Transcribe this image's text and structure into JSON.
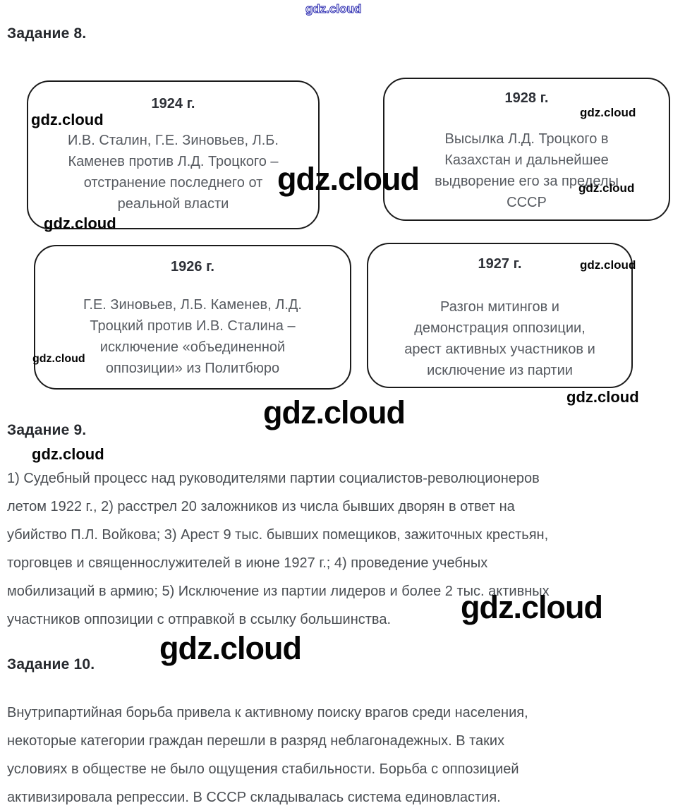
{
  "watermark": {
    "text": "gdz.cloud",
    "blue_color": "#2a2ab0",
    "black_color": "#050505"
  },
  "task8": {
    "heading": "Задание 8.",
    "boxes": [
      {
        "year": "1924 г.",
        "text": "И.В. Сталин, Г.Е. Зиновьев, Л.Б.\nКаменев против Л.Д. Троцкого –\nотстранение последнего от\nреальной власти"
      },
      {
        "year": "1928 г.",
        "text": "Высылка Л.Д. Троцкого в\nКазахстан и дальнейшее\nвыдворение его за пределы\nСССР"
      },
      {
        "year": "1926 г.",
        "text": "Г.Е. Зиновьев, Л.Б. Каменев, Л.Д.\nТроцкий против И.В. Сталина –\nисключение «объединенной\nоппозиции» из Политбюро"
      },
      {
        "year": "1927 г.",
        "text": "Разгон митингов и\nдемонстрация оппозиции,\nарест активных участников и\nисключение из партии"
      }
    ]
  },
  "task9": {
    "heading": "Задание 9.",
    "paragraph": "1) Судебный процесс над руководителями партии социалистов-революционеров\nлетом 1922 г., 2) расстрел 20 заложников из числа бывших дворян в ответ на\nубийство П.Л. Войкова; 3) Арест 9 тыс. бывших помещиков, зажиточных крестьян,\nторговцев и священнослужителей в июне 1927 г.; 4) проведение учебных\nмобилизаций в армию; 5) Исключение из партии лидеров и более 2 тыс. активных\nучастников оппозиции с отправкой в ссылку большинства."
  },
  "task10": {
    "heading": "Задание 10.",
    "paragraph": "Внутрипартийная борьба привела к активному поиску врагов среди населения,\nнекоторые категории граждан перешли в разряд неблагонадежных. В таких\nусловиях в обществе не было ощущения стабильности. Борьба с оппозицией\nактивизировала репрессии. В СССР складывалась система единовластия."
  },
  "colors": {
    "heading": "#26292e",
    "body_text": "#494d52",
    "box_text": "#565a60",
    "box_border": "#1b1b1b"
  }
}
